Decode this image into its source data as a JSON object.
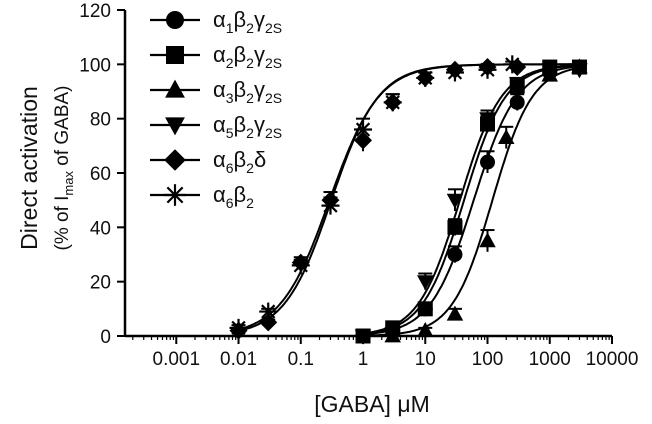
{
  "chart_data": {
    "type": "scatter",
    "title": "",
    "xlabel": "[GABA] μM",
    "ylabel": "Direct activation",
    "ylabel_sub": {
      "pre": "(% of I",
      "sub": "max",
      "post": " of GABA)"
    },
    "xscale": "log",
    "xlim": [
      0.00015,
      10000
    ],
    "ylim": [
      0,
      120
    ],
    "grid": false,
    "legend_position": "top-left",
    "x_ticks": [
      {
        "value": 0.001,
        "label": "0.001"
      },
      {
        "value": 0.01,
        "label": "0.01"
      },
      {
        "value": 0.1,
        "label": "0.1"
      },
      {
        "value": 1,
        "label": "1"
      },
      {
        "value": 10,
        "label": "10"
      },
      {
        "value": 100,
        "label": "100"
      },
      {
        "value": 1000,
        "label": "1000"
      },
      {
        "value": 10000,
        "label": "10000"
      }
    ],
    "y_ticks": [
      {
        "value": 0,
        "label": "0"
      },
      {
        "value": 20,
        "label": "20"
      },
      {
        "value": 40,
        "label": "40"
      },
      {
        "value": 60,
        "label": "60"
      },
      {
        "value": 80,
        "label": "80"
      },
      {
        "value": 100,
        "label": "100"
      },
      {
        "value": 120,
        "label": "120"
      }
    ],
    "series": [
      {
        "name": "α1β2γ2S",
        "legend": {
          "sym": "α",
          "parts": [
            [
              "1",
              false
            ],
            [
              "β",
              true
            ],
            [
              "2",
              false
            ],
            [
              "γ",
              true
            ],
            [
              "2S",
              false
            ]
          ]
        },
        "marker": "circle",
        "points": [
          [
            1,
            0
          ],
          [
            3,
            2
          ],
          [
            10,
            10
          ],
          [
            30,
            30
          ],
          [
            100,
            64
          ],
          [
            300,
            86
          ],
          [
            1000,
            97
          ],
          [
            3000,
            99
          ]
        ],
        "error": [
          0,
          1,
          2,
          3,
          4,
          3,
          2,
          1
        ],
        "fit": {
          "ec50": 60,
          "hill": 1.25
        }
      },
      {
        "name": "α2β2γ2S",
        "legend": {
          "sym": "α",
          "parts": [
            [
              "2",
              false
            ],
            [
              "β",
              true
            ],
            [
              "2",
              false
            ],
            [
              "γ",
              true
            ],
            [
              "2S",
              false
            ]
          ]
        },
        "marker": "square",
        "points": [
          [
            1,
            0
          ],
          [
            3,
            3
          ],
          [
            10,
            10
          ],
          [
            30,
            40
          ],
          [
            100,
            78
          ],
          [
            300,
            92
          ],
          [
            1000,
            99
          ],
          [
            3000,
            99
          ]
        ],
        "error": [
          0,
          1,
          2,
          3,
          3,
          2,
          1,
          1
        ],
        "fit": {
          "ec50": 42,
          "hill": 1.3
        }
      },
      {
        "name": "α3β2γ2S",
        "legend": {
          "sym": "α",
          "parts": [
            [
              "3",
              false
            ],
            [
              "β",
              true
            ],
            [
              "2",
              false
            ],
            [
              "γ",
              true
            ],
            [
              "2S",
              false
            ]
          ]
        },
        "marker": "triangle-up",
        "points": [
          [
            3,
            0
          ],
          [
            10,
            2
          ],
          [
            30,
            8
          ],
          [
            100,
            35
          ],
          [
            200,
            73
          ],
          [
            1000,
            96
          ],
          [
            3000,
            99
          ]
        ],
        "error": [
          0,
          1,
          2,
          4,
          4,
          2,
          1
        ],
        "fit": {
          "ec50": 120,
          "hill": 1.35
        }
      },
      {
        "name": "α5β2γ2S",
        "legend": {
          "sym": "α",
          "parts": [
            [
              "5",
              false
            ],
            [
              "β",
              true
            ],
            [
              "2",
              false
            ],
            [
              "γ",
              true
            ],
            [
              "2S",
              false
            ]
          ]
        },
        "marker": "triangle-down",
        "points": [
          [
            1,
            0
          ],
          [
            3,
            1
          ],
          [
            10,
            20
          ],
          [
            30,
            50
          ],
          [
            100,
            80
          ],
          [
            300,
            93
          ],
          [
            1000,
            98
          ],
          [
            3000,
            98
          ]
        ],
        "error": [
          0,
          1,
          3,
          4,
          3,
          2,
          1,
          1
        ],
        "fit": {
          "ec50": 36,
          "hill": 1.3
        }
      },
      {
        "name": "α6β2δ",
        "legend": {
          "sym": "α",
          "parts": [
            [
              "6",
              false
            ],
            [
              "β",
              true
            ],
            [
              "2",
              false
            ],
            [
              "δ",
              true
            ]
          ]
        },
        "marker": "diamond",
        "points": [
          [
            0.01,
            2
          ],
          [
            0.03,
            5
          ],
          [
            0.1,
            27
          ],
          [
            0.3,
            50
          ],
          [
            1,
            72
          ],
          [
            3,
            86
          ],
          [
            10,
            95
          ],
          [
            30,
            98
          ],
          [
            100,
            99
          ],
          [
            300,
            99
          ]
        ],
        "error": [
          1,
          1,
          2,
          3,
          4,
          3,
          2,
          1,
          1,
          1
        ],
        "fit": {
          "ec50": 0.31,
          "hill": 1.15
        }
      },
      {
        "name": "α6β2",
        "legend": {
          "sym": "α",
          "parts": [
            [
              "6",
              false
            ],
            [
              "β",
              true
            ],
            [
              "2",
              false
            ]
          ]
        },
        "marker": "asterisk",
        "points": [
          [
            0.01,
            3
          ],
          [
            0.03,
            9
          ],
          [
            0.1,
            26
          ],
          [
            0.3,
            48
          ],
          [
            1,
            76
          ],
          [
            3,
            86
          ],
          [
            10,
            95
          ],
          [
            30,
            97
          ],
          [
            100,
            98
          ],
          [
            250,
            100
          ]
        ],
        "error": [
          1,
          1,
          2,
          3,
          4,
          3,
          2,
          1,
          1,
          1
        ],
        "fit": {
          "ec50": 0.29,
          "hill": 1.1
        }
      }
    ]
  }
}
